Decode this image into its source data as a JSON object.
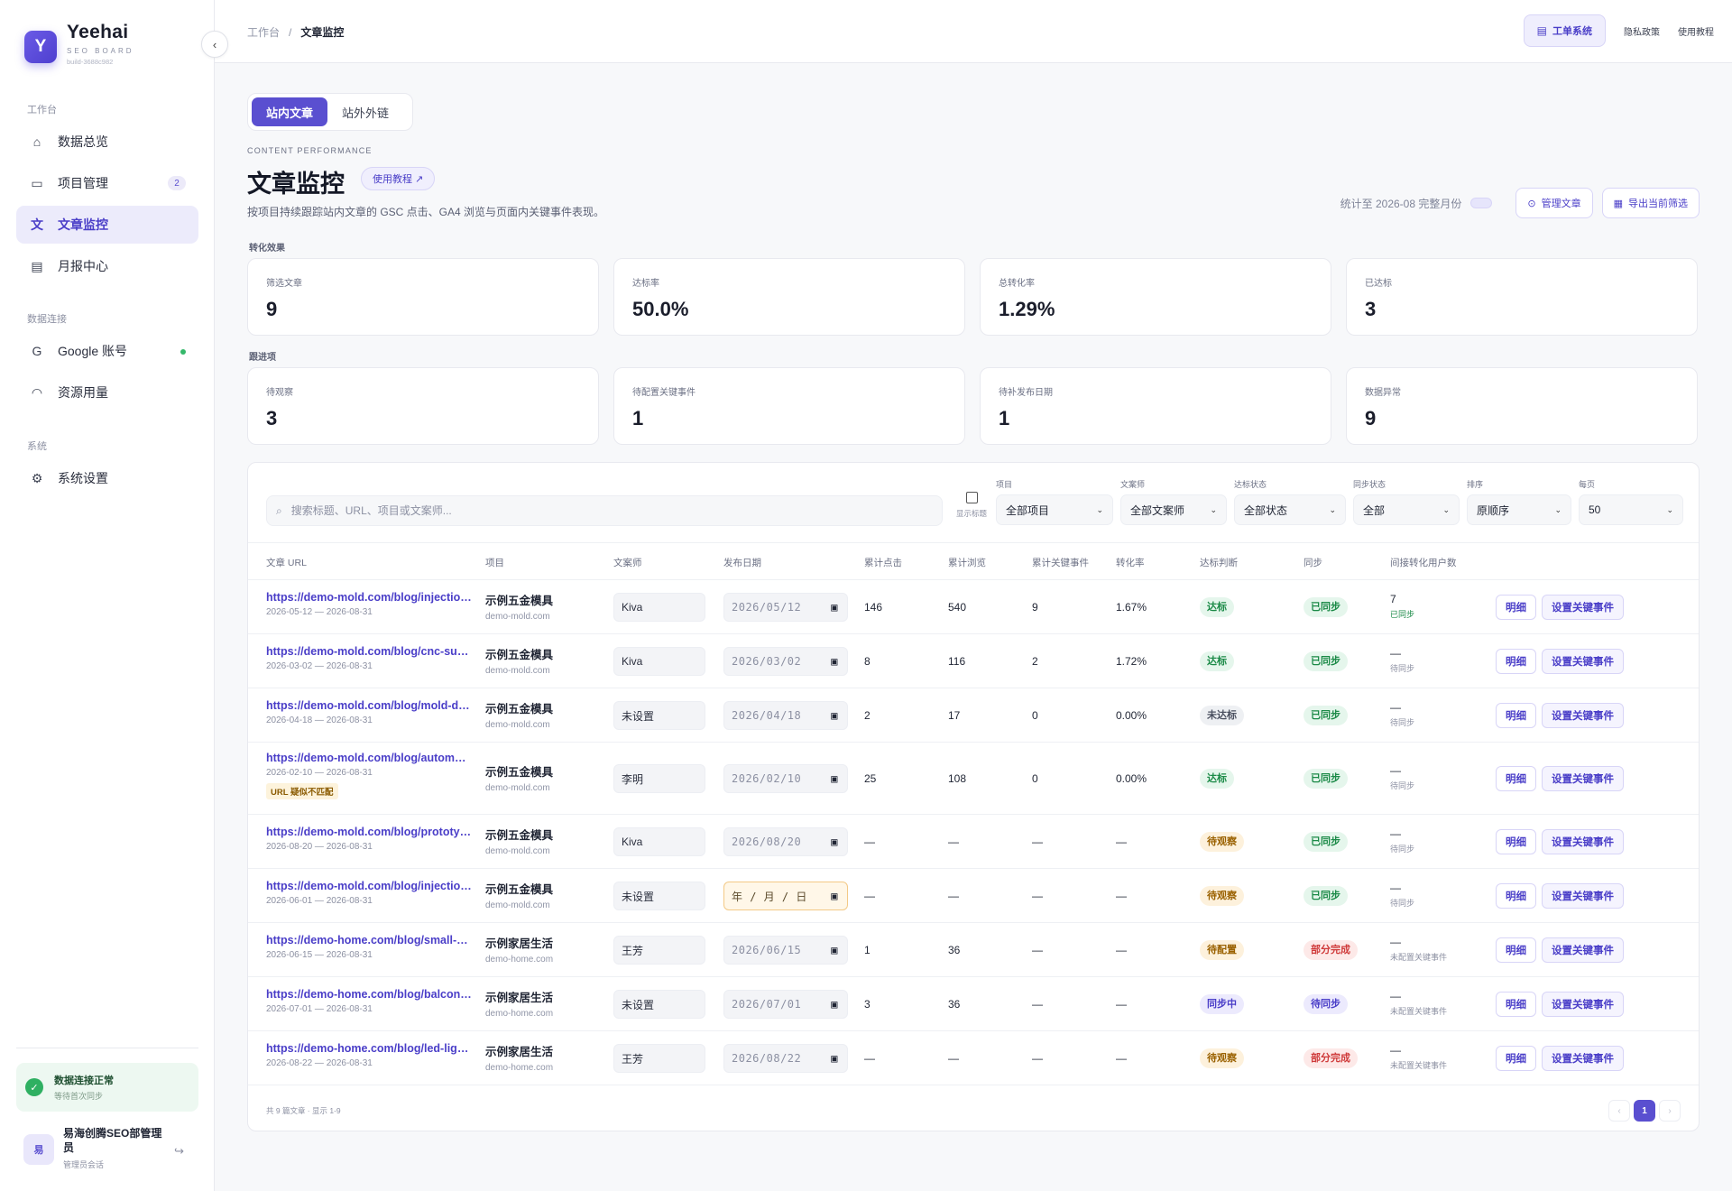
{
  "brand": {
    "logo_letter": "Y",
    "name": "Yeehai",
    "sub": "SEO BOARD",
    "build": "build-3688c982"
  },
  "sidebar": {
    "groups": [
      "工作台",
      "数据连接",
      "系统"
    ],
    "items": [
      {
        "label": "数据总览",
        "icon": "home-icon"
      },
      {
        "label": "项目管理",
        "icon": "folder-icon",
        "badge": "2"
      },
      {
        "label": "文章监控",
        "icon": "text-icon",
        "active": true
      },
      {
        "label": "月报中心",
        "icon": "report-icon"
      },
      {
        "label": "Google 账号",
        "icon": "google-icon",
        "status": "connected"
      },
      {
        "label": "资源用量",
        "icon": "gauge-icon"
      },
      {
        "label": "系统设置",
        "icon": "gear-icon"
      }
    ],
    "connection": {
      "title": "数据连接正常",
      "sub": "等待首次同步"
    },
    "user": {
      "avatar": "易",
      "name": "易海创腾SEO部管理员",
      "role": "管理员会话"
    }
  },
  "topbar": {
    "breadcrumb": [
      "工作台",
      "文章监控"
    ],
    "primary_btn": "工单系统",
    "links": [
      "隐私政策",
      "使用教程"
    ]
  },
  "page": {
    "tabs": [
      "站内文章",
      "站外外链"
    ],
    "eyebrow": "CONTENT PERFORMANCE",
    "title": "文章监控",
    "tutorial_btn": "使用教程 ↗",
    "desc": "按项目持续跟踪站内文章的 GSC 点击、GA4 浏览与页面内关键事件表现。",
    "stat_until": "统计至 2026-08 完整月份",
    "manage_btn": "管理文章",
    "export_btn": "导出当前筛选"
  },
  "sections": {
    "conversion": "转化效果",
    "followup": "跟进项"
  },
  "kpis_conversion": [
    {
      "label": "筛选文章",
      "value": "9"
    },
    {
      "label": "达标率",
      "value": "50.0%"
    },
    {
      "label": "总转化率",
      "value": "1.29%"
    },
    {
      "label": "已达标",
      "value": "3"
    }
  ],
  "kpis_followup": [
    {
      "label": "待观察",
      "value": "3"
    },
    {
      "label": "待配置关键事件",
      "value": "1"
    },
    {
      "label": "待补发布日期",
      "value": "1"
    },
    {
      "label": "数据异常",
      "value": "9"
    }
  ],
  "filters": {
    "search_placeholder": "搜索标题、URL、项目或文案师...",
    "show_title": "显示标题",
    "selects": [
      {
        "label": "项目",
        "value": "全部项目"
      },
      {
        "label": "文案师",
        "value": "全部文案师"
      },
      {
        "label": "达标状态",
        "value": "全部状态"
      },
      {
        "label": "同步状态",
        "value": "全部"
      },
      {
        "label": "排序",
        "value": "原顺序"
      },
      {
        "label": "每页",
        "value": "50"
      }
    ]
  },
  "table": {
    "columns": [
      "文章 URL",
      "项目",
      "文案师",
      "发布日期",
      "累计点击",
      "累计浏览",
      "累计关键事件",
      "转化率",
      "达标判断",
      "同步",
      "间接转化用户数"
    ],
    "actions": {
      "detail": "明细",
      "event": "设置关键事件"
    },
    "rows": [
      {
        "url": "https://demo-mold.com/blog/injection-molding",
        "range": "2026-05-12 — 2026-08-31",
        "project": "示例五金模具",
        "domain": "demo-mold.com",
        "writer": "Kiva",
        "date": "2026/05/12",
        "clicks": "146",
        "views": "540",
        "events": "9",
        "rate": "1.67%",
        "judge": "达标",
        "judge_tone": "green",
        "sync": "已同步",
        "sync_tone": "green",
        "ind": "7",
        "ind_sub": "已同步",
        "ind_ok": true
      },
      {
        "url": "https://demo-mold.com/blog/cnc-surface-finish",
        "range": "2026-03-02 — 2026-08-31",
        "project": "示例五金模具",
        "domain": "demo-mold.com",
        "writer": "Kiva",
        "date": "2026/03/02",
        "clicks": "8",
        "views": "116",
        "events": "2",
        "rate": "1.72%",
        "judge": "达标",
        "judge_tone": "green",
        "sync": "已同步",
        "sync_tone": "green",
        "ind": "—",
        "ind_sub": "待同步"
      },
      {
        "url": "https://demo-mold.com/blog/mold-design-guide",
        "range": "2026-04-18 — 2026-08-31",
        "project": "示例五金模具",
        "domain": "demo-mold.com",
        "writer": "未设置",
        "date": "2026/04/18",
        "clicks": "2",
        "views": "17",
        "events": "0",
        "rate": "0.00%",
        "judge": "未达标",
        "judge_tone": "gray",
        "sync": "已同步",
        "sync_tone": "green",
        "ind": "—",
        "ind_sub": "待同步"
      },
      {
        "url": "https://demo-mold.com/blog/automotive-mold",
        "range": "2026-02-10 — 2026-08-31",
        "flag": "URL 疑似不匹配",
        "project": "示例五金模具",
        "domain": "demo-mold.com",
        "writer": "李明",
        "date": "2026/02/10",
        "clicks": "25",
        "views": "108",
        "events": "0",
        "rate": "0.00%",
        "judge": "达标",
        "judge_tone": "green",
        "sync": "已同步",
        "sync_tone": "green",
        "ind": "—",
        "ind_sub": "待同步"
      },
      {
        "url": "https://demo-mold.com/blog/prototype-tooling",
        "range": "2026-08-20 — 2026-08-31",
        "project": "示例五金模具",
        "domain": "demo-mold.com",
        "writer": "Kiva",
        "date": "2026/08/20",
        "clicks": "—",
        "views": "—",
        "events": "—",
        "rate": "—",
        "judge": "待观察",
        "judge_tone": "amber",
        "sync": "已同步",
        "sync_tone": "green",
        "ind": "—",
        "ind_sub": "待同步"
      },
      {
        "url": "https://demo-mold.com/blog/injection-cost",
        "range": "2026-06-01 — 2026-08-31",
        "project": "示例五金模具",
        "domain": "demo-mold.com",
        "writer": "未设置",
        "date": "年 / 月 / 日",
        "date_empty": true,
        "clicks": "—",
        "views": "—",
        "events": "—",
        "rate": "—",
        "judge": "待观察",
        "judge_tone": "amber",
        "sync": "已同步",
        "sync_tone": "green",
        "ind": "—",
        "ind_sub": "待同步"
      },
      {
        "url": "https://demo-home.com/blog/small-space-storage",
        "range": "2026-06-15 — 2026-08-31",
        "project": "示例家居生活",
        "domain": "demo-home.com",
        "writer": "王芳",
        "date": "2026/06/15",
        "clicks": "1",
        "views": "36",
        "events": "—",
        "rate": "—",
        "judge": "待配置",
        "judge_tone": "amber",
        "sync": "部分完成",
        "sync_tone": "red",
        "ind": "—",
        "ind_sub": "未配置关键事件"
      },
      {
        "url": "https://demo-home.com/blog/balcony-garden",
        "range": "2026-07-01 — 2026-08-31",
        "project": "示例家居生活",
        "domain": "demo-home.com",
        "writer": "未设置",
        "date": "2026/07/01",
        "clicks": "3",
        "views": "36",
        "events": "—",
        "rate": "—",
        "judge": "同步中",
        "judge_tone": "purple",
        "sync": "待同步",
        "sync_tone": "purple",
        "ind": "—",
        "ind_sub": "未配置关键事件"
      },
      {
        "url": "https://demo-home.com/blog/led-lighting",
        "range": "2026-08-22 — 2026-08-31",
        "project": "示例家居生活",
        "domain": "demo-home.com",
        "writer": "王芳",
        "date": "2026/08/22",
        "clicks": "—",
        "views": "—",
        "events": "—",
        "rate": "—",
        "judge": "待观察",
        "judge_tone": "amber",
        "sync": "部分完成",
        "sync_tone": "red",
        "ind": "—",
        "ind_sub": "未配置关键事件"
      }
    ]
  },
  "footer": {
    "summary": "共 9 篇文章 · 显示 1-9",
    "page": "1"
  },
  "colors": {
    "accent": "#5a4fd0",
    "success": "#2fb062",
    "warning": "#9a6100",
    "danger": "#cf3a3a"
  }
}
